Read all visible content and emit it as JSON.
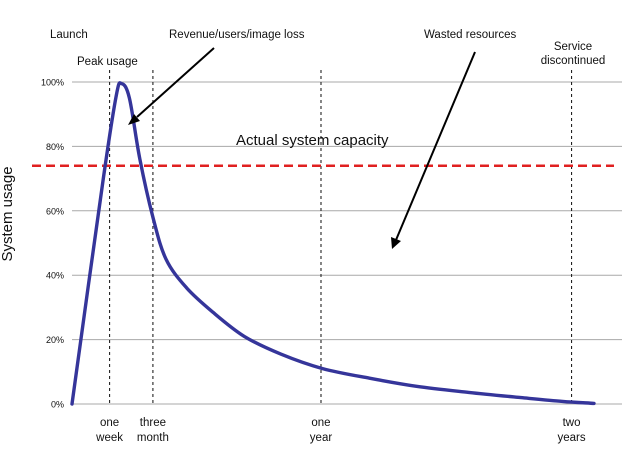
{
  "chart_data": {
    "type": "line",
    "ylabel": "System usage",
    "ylim": [
      0,
      100
    ],
    "yticks": [
      {
        "value": 0,
        "label": "0%"
      },
      {
        "value": 20,
        "label": "20%"
      },
      {
        "value": 40,
        "label": "40%"
      },
      {
        "value": 60,
        "label": "60%"
      },
      {
        "value": 80,
        "label": "80%"
      },
      {
        "value": 100,
        "label": "100%"
      }
    ],
    "grid": true,
    "series": [
      {
        "color": "#35359a",
        "points": [
          {
            "x": 0.0,
            "y": 0
          },
          {
            "x": 0.06,
            "y": 70
          },
          {
            "x": 0.085,
            "y": 96
          },
          {
            "x": 0.095,
            "y": 99.5
          },
          {
            "x": 0.11,
            "y": 95
          },
          {
            "x": 0.13,
            "y": 76
          },
          {
            "x": 0.155,
            "y": 58
          },
          {
            "x": 0.18,
            "y": 45
          },
          {
            "x": 0.22,
            "y": 36
          },
          {
            "x": 0.27,
            "y": 28.5
          },
          {
            "x": 0.33,
            "y": 21
          },
          {
            "x": 0.4,
            "y": 15.5
          },
          {
            "x": 0.48,
            "y": 11
          },
          {
            "x": 0.57,
            "y": 8
          },
          {
            "x": 0.66,
            "y": 5.5
          },
          {
            "x": 0.76,
            "y": 3.6
          },
          {
            "x": 0.86,
            "y": 2
          },
          {
            "x": 0.94,
            "y": 0.8
          },
          {
            "x": 1.0,
            "y": 0.2
          }
        ]
      }
    ],
    "reference_line": {
      "label": "Actual system capacity",
      "value": 74,
      "color": "#e02020"
    },
    "vlines": [
      {
        "x": 0.072,
        "top_label": "Launch"
      },
      {
        "x": 0.155,
        "top_label": ""
      },
      {
        "x": 0.477,
        "top_label": ""
      },
      {
        "x": 0.957,
        "top_label": "Service discontinued"
      }
    ],
    "xticks": [
      {
        "x": 0.072,
        "label": [
          "one",
          "week"
        ]
      },
      {
        "x": 0.155,
        "label": [
          "three",
          "month"
        ]
      },
      {
        "x": 0.477,
        "label": [
          "one",
          "year"
        ]
      },
      {
        "x": 0.957,
        "label": [
          "two",
          "years"
        ]
      }
    ],
    "annotations": {
      "launch": "Launch",
      "peak": "Peak usage",
      "loss": "Revenue/users/image loss",
      "wasted": "Wasted resources",
      "service": [
        "Service",
        "discontinued"
      ]
    }
  }
}
